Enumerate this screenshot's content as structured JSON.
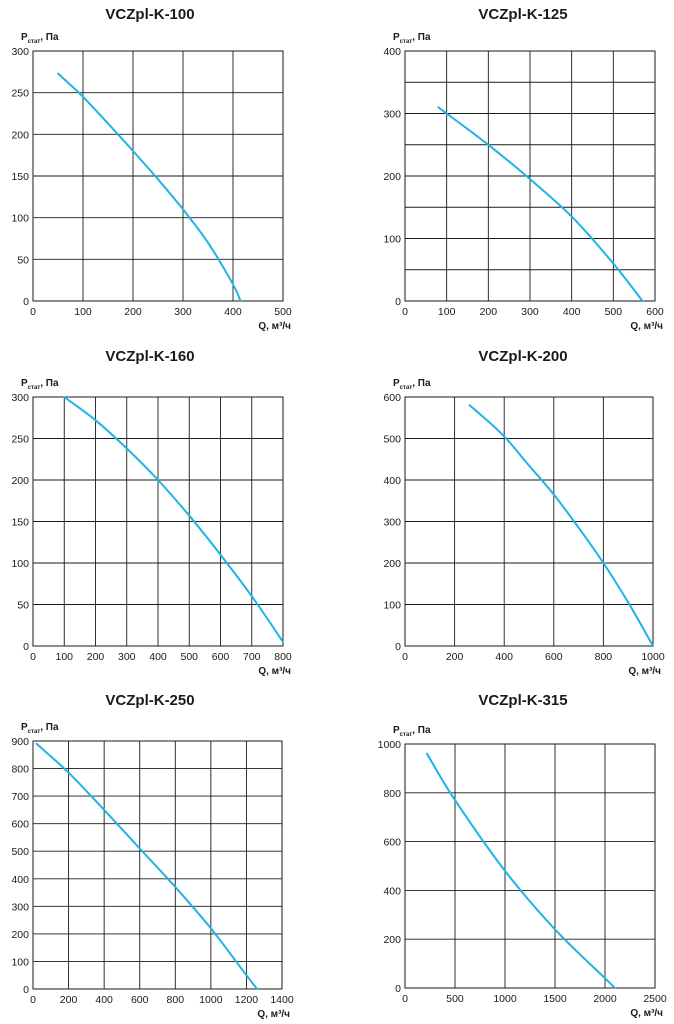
{
  "colors": {
    "curve": "#1fb3e6",
    "grid": "#1a1a1a",
    "text": "#1a1a1a"
  },
  "chart_data": [
    {
      "type": "line",
      "title": "VCZpl-K-100",
      "ylabel_main": "P",
      "ylabel_sub": "стат",
      "ylabel_unit": ", Па",
      "xlabel": "Q, м³/ч",
      "xlim": [
        0,
        500
      ],
      "ylim": [
        0,
        300
      ],
      "xticks": [
        0,
        100,
        200,
        300,
        400,
        500
      ],
      "yticks": [
        0,
        50,
        100,
        150,
        200,
        250,
        300
      ],
      "grid": true,
      "series": [
        {
          "name": "VCZpl-K-100",
          "x": [
            50,
            100,
            150,
            200,
            250,
            300,
            350,
            400,
            415
          ],
          "y": [
            273,
            245,
            213,
            180,
            146,
            110,
            70,
            20,
            0
          ]
        }
      ]
    },
    {
      "type": "line",
      "title": "VCZpl-K-125",
      "ylabel_main": "P",
      "ylabel_sub": "стат",
      "ylabel_unit": ", Па",
      "xlabel": "Q, м³/ч",
      "xlim": [
        0,
        600
      ],
      "ylim": [
        0,
        400
      ],
      "xticks": [
        0,
        100,
        200,
        300,
        400,
        500,
        600
      ],
      "yticks": [
        0,
        100,
        200,
        300,
        400
      ],
      "grid": true,
      "gridlines_y": [
        0,
        50,
        100,
        150,
        200,
        250,
        300,
        350,
        400
      ],
      "series": [
        {
          "name": "VCZpl-K-125",
          "x": [
            80,
            100,
            200,
            300,
            400,
            500,
            570
          ],
          "y": [
            310,
            300,
            250,
            195,
            135,
            60,
            0
          ]
        }
      ]
    },
    {
      "type": "line",
      "title": "VCZpl-K-160",
      "ylabel_main": "P",
      "ylabel_sub": "стат",
      "ylabel_unit": ", Па",
      "xlabel": "Q, м³/ч",
      "xlim": [
        0,
        800
      ],
      "ylim": [
        0,
        300
      ],
      "xticks": [
        0,
        100,
        200,
        300,
        400,
        500,
        600,
        700,
        800
      ],
      "yticks": [
        0,
        50,
        100,
        150,
        200,
        250,
        300
      ],
      "grid": true,
      "series": [
        {
          "name": "VCZpl-K-160",
          "x": [
            100,
            200,
            300,
            400,
            500,
            600,
            700,
            800
          ],
          "y": [
            300,
            272,
            238,
            200,
            157,
            110,
            60,
            5
          ]
        }
      ]
    },
    {
      "type": "line",
      "title": "VCZpl-K-200",
      "ylabel_main": "P",
      "ylabel_sub": "стат",
      "ylabel_unit": ", Па",
      "xlabel": "Q, м³/ч",
      "xlim": [
        0,
        1000
      ],
      "ylim": [
        0,
        600
      ],
      "xticks": [
        0,
        200,
        400,
        600,
        800,
        1000
      ],
      "yticks": [
        0,
        100,
        200,
        300,
        400,
        500,
        600
      ],
      "grid": true,
      "series": [
        {
          "name": "VCZpl-K-200",
          "x": [
            260,
            300,
            400,
            500,
            600,
            700,
            800,
            900,
            1000
          ],
          "y": [
            580,
            560,
            505,
            435,
            365,
            285,
            200,
            105,
            0
          ]
        }
      ]
    },
    {
      "type": "line",
      "title": "VCZpl-K-250",
      "ylabel_main": "P",
      "ylabel_sub": "стат",
      "ylabel_unit": ", Па",
      "xlabel": "Q, м³/ч",
      "xlim": [
        0,
        1400
      ],
      "ylim": [
        0,
        900
      ],
      "xticks": [
        0,
        200,
        400,
        600,
        800,
        1000,
        1200,
        1400
      ],
      "yticks": [
        0,
        100,
        200,
        300,
        400,
        500,
        600,
        700,
        800,
        900
      ],
      "grid": true,
      "series": [
        {
          "name": "VCZpl-K-250",
          "x": [
            20,
            200,
            400,
            600,
            800,
            1000,
            1200,
            1260
          ],
          "y": [
            890,
            785,
            650,
            510,
            370,
            220,
            50,
            0
          ]
        }
      ]
    },
    {
      "type": "line",
      "title": "VCZpl-K-315",
      "ylabel_main": "P",
      "ylabel_sub": "стат",
      "ylabel_unit": ", Па",
      "xlabel": "Q, м³/ч",
      "xlim": [
        0,
        2500
      ],
      "ylim": [
        0,
        1000
      ],
      "xticks": [
        0,
        500,
        1000,
        1500,
        2000,
        2500
      ],
      "yticks": [
        0,
        200,
        400,
        600,
        800,
        1000
      ],
      "grid": true,
      "series": [
        {
          "name": "VCZpl-K-315",
          "x": [
            220,
            500,
            1000,
            1500,
            2000,
            2100
          ],
          "y": [
            960,
            770,
            480,
            240,
            40,
            0
          ]
        }
      ]
    }
  ]
}
